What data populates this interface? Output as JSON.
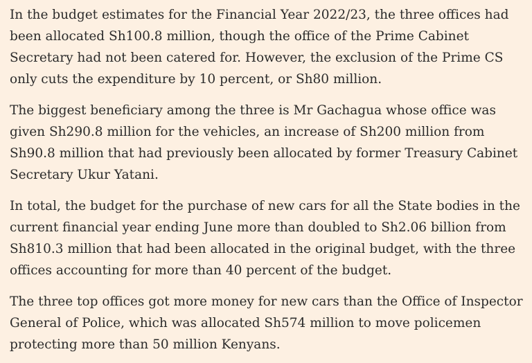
{
  "article": {
    "paragraphs": [
      "In the budget estimates for the Financial Year 2022/23, the three offices had been allocated Sh100.8 million, though the office of the Prime Cabinet Secretary had not been catered for. However, the exclusion of the Prime CS only cuts the expenditure by 10 percent, or Sh80 million.",
      "The biggest beneficiary among the three is Mr Gachagua whose office was given Sh290.8 million for the vehicles, an increase of Sh200 million from Sh90.8 million that had previously been allocated by former Treasury Cabinet Secretary Ukur Yatani.",
      "In total, the budget for the purchase of new cars for all the State bodies in the current financial year ending June more than doubled to Sh2.06 billion from Sh810.3 million that had been allocated in the original budget, with the three offices accounting for more than 40 percent of the budget.",
      "The three top offices got more money for new cars than the Office of Inspector General of Police, which was allocated Sh574 million to move policemen protecting more than 50 million Kenyans."
    ]
  }
}
